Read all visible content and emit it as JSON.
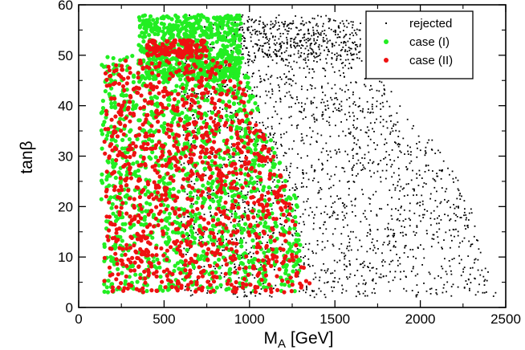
{
  "chart_data": {
    "type": "scatter",
    "title": "",
    "xlabel": "M",
    "xlabel_sub": "A",
    "xlabel_unit": " [GeV]",
    "ylabel": "tanβ",
    "xlim": [
      0,
      2500
    ],
    "ylim": [
      0,
      60
    ],
    "xticks": [
      0,
      500,
      1000,
      1500,
      2000,
      2500
    ],
    "yticks": [
      0,
      10,
      20,
      30,
      40,
      50,
      60
    ],
    "grid": false,
    "legend_position": "top-right",
    "colors": {
      "rejected": "#000000",
      "case1": "#22ee22",
      "case2": "#ee1111"
    },
    "series": [
      {
        "name": "rejected",
        "key": "rejected",
        "marker": "small-dot",
        "regions": [
          {
            "x": [
              900,
              1650
            ],
            "y": [
              49,
              57
            ],
            "n": 380
          },
          {
            "x": [
              600,
              2450
            ],
            "y": [
              2,
              58
            ],
            "n": 2100,
            "boundary": [
              [
                2,
                2450
              ],
              [
                10,
                2380
              ],
              [
                20,
                2300
              ],
              [
                30,
                2150
              ],
              [
                40,
                1900
              ],
              [
                50,
                1650
              ],
              [
                58,
                1500
              ]
            ]
          }
        ]
      },
      {
        "name": "case (I)",
        "key": "case1",
        "marker": "dot",
        "regions": [
          {
            "x": [
              350,
              950
            ],
            "y": [
              45,
              58
            ],
            "n": 650
          },
          {
            "x": [
              130,
              1300
            ],
            "y": [
              3,
              50
            ],
            "n": 1300,
            "boundary": [
              [
                3,
                1290
              ],
              [
                10,
                1300
              ],
              [
                20,
                1290
              ],
              [
                30,
                1180
              ],
              [
                40,
                1050
              ],
              [
                50,
                960
              ]
            ]
          }
        ]
      },
      {
        "name": "case (II)",
        "key": "case2",
        "marker": "dot",
        "regions": [
          {
            "x": [
              400,
              750
            ],
            "y": [
              49.5,
              53
            ],
            "n": 160
          },
          {
            "x": [
              150,
              1380
            ],
            "y": [
              3,
              49
            ],
            "n": 1100,
            "boundary": [
              [
                3,
                1380
              ],
              [
                10,
                1300
              ],
              [
                20,
                1250
              ],
              [
                30,
                1150
              ],
              [
                40,
                1000
              ],
              [
                49,
                900
              ]
            ]
          }
        ]
      }
    ]
  },
  "legend": {
    "entries": [
      {
        "label": "rejected",
        "key": "rejected"
      },
      {
        "label": "case (I)",
        "key": "case1"
      },
      {
        "label": "case (II)",
        "key": "case2"
      }
    ]
  }
}
